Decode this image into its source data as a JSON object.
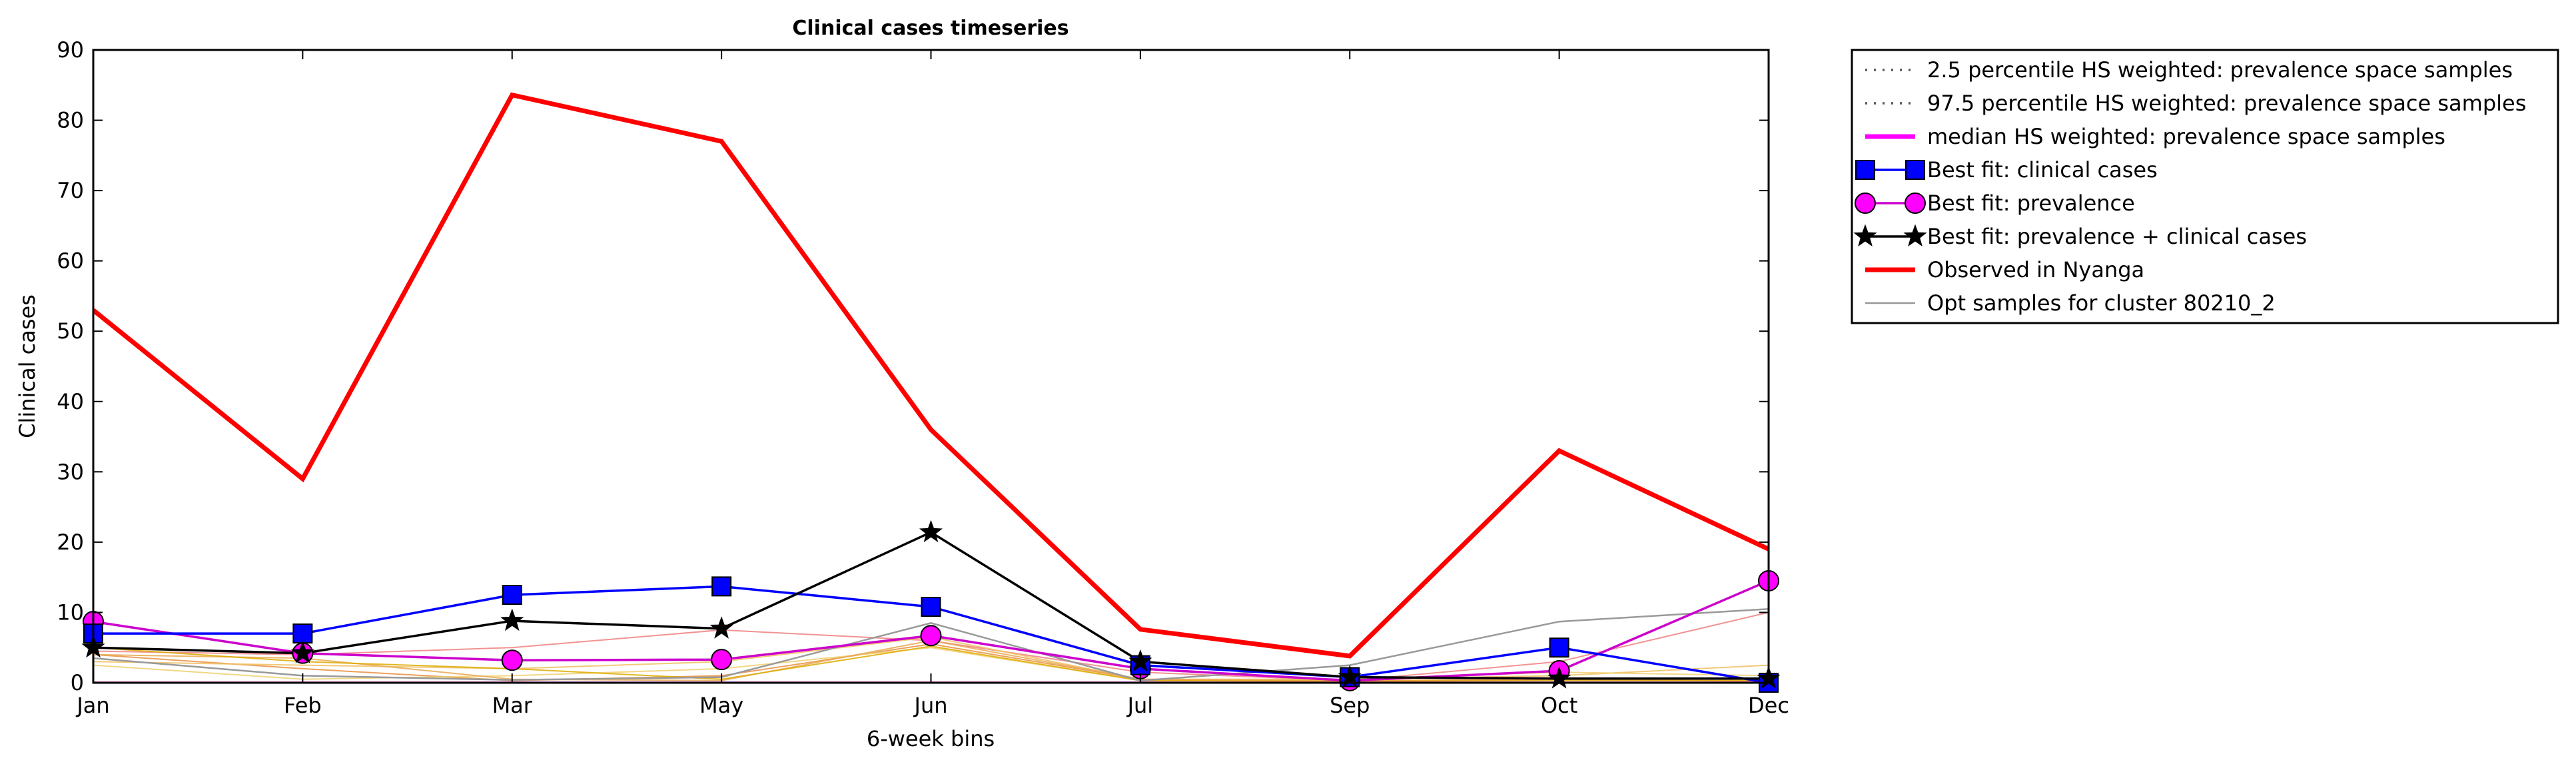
{
  "chart_data": {
    "type": "line",
    "title": "Clinical cases timeseries",
    "xlabel": "6-week bins",
    "ylabel": "Clinical cases",
    "categories": [
      "Jan",
      "Feb",
      "Mar",
      "May",
      "Jun",
      "Jul",
      "Sep",
      "Oct",
      "Dec"
    ],
    "yticks": [
      "0",
      "10",
      "20",
      "30",
      "40",
      "50",
      "60",
      "70",
      "80",
      "90"
    ],
    "ylim": [
      0,
      90
    ],
    "grid": false,
    "legend_position": "outside-right-top",
    "series": [
      {
        "name": "2.5 percentile HS weighted: prevalence space samples",
        "style": "dotted",
        "color": "#555555",
        "marker": "none",
        "values": [
          0,
          0,
          0,
          0,
          0,
          0,
          0,
          0,
          0
        ]
      },
      {
        "name": "97.5 percentile HS weighted: prevalence space samples",
        "style": "dotted",
        "color": "#555555",
        "marker": "none",
        "values": [
          0,
          0,
          0,
          0,
          0,
          0,
          0,
          0,
          0
        ]
      },
      {
        "name": "median HS weighted: prevalence space samples",
        "style": "solid",
        "color": "#ff00ff",
        "marker": "none",
        "values": [
          0,
          0,
          0,
          0,
          0,
          0,
          0,
          0,
          0
        ]
      },
      {
        "name": "Best fit: clinical cases",
        "style": "solid",
        "color": "#0000ff",
        "marker": "square",
        "values": [
          7,
          7,
          12.5,
          13.7,
          10.8,
          2.5,
          0.8,
          5,
          0
        ]
      },
      {
        "name": "Best fit: prevalence",
        "style": "solid",
        "color": "#cc00cc",
        "marker": "circle",
        "values": [
          8.7,
          4.2,
          3.2,
          3.3,
          6.7,
          2,
          0.3,
          1.7,
          14.5
        ]
      },
      {
        "name": "Best fit: prevalence + clinical cases",
        "style": "solid",
        "color": "#000000",
        "marker": "star",
        "values": [
          5,
          4.2,
          8.8,
          7.7,
          21.4,
          3,
          0.8,
          0.6,
          0.6
        ]
      },
      {
        "name": "Observed in Nyanga",
        "style": "solid",
        "color": "#ff0000",
        "marker": "none",
        "values": [
          53,
          29,
          83.6,
          77,
          36,
          7.6,
          3.8,
          33,
          19
        ]
      },
      {
        "name": "Opt samples for cluster 80210_2",
        "style": "solid",
        "color": "#999999",
        "marker": "none",
        "values": [
          3.5,
          1,
          0.4,
          0.8,
          8.5,
          0.3,
          2.5,
          8.7,
          10.5
        ]
      }
    ],
    "extra_samples": [
      {
        "color": "#f08080",
        "values": [
          4.5,
          4,
          5,
          7.5,
          6,
          1.5,
          0.3,
          3,
          10
        ]
      },
      {
        "color": "#e89040",
        "values": [
          4,
          2,
          0.3,
          1,
          5.5,
          0.5,
          0.2,
          0.5,
          0.2
        ]
      },
      {
        "color": "#f0c060",
        "values": [
          3,
          2.5,
          2,
          3,
          6.5,
          0.5,
          0.5,
          1,
          2.5
        ]
      },
      {
        "color": "#f0d070",
        "values": [
          2.5,
          0.5,
          1,
          2,
          5,
          0.3,
          0.5,
          1.5,
          1
        ]
      },
      {
        "color": "#e8a850",
        "values": [
          4,
          3.5,
          0.5,
          0.3,
          6,
          0.5,
          0.3,
          0.5,
          0.5
        ]
      },
      {
        "color": "#ddaa00",
        "values": [
          5,
          3,
          2,
          0.5,
          5.2,
          0.3,
          0.2,
          0.3,
          0.3
        ]
      }
    ]
  }
}
